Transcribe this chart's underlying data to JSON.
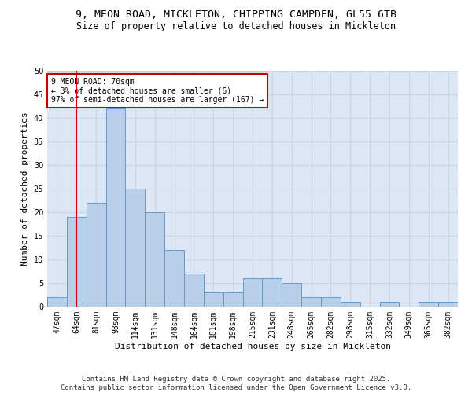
{
  "title_line1": "9, MEON ROAD, MICKLETON, CHIPPING CAMPDEN, GL55 6TB",
  "title_line2": "Size of property relative to detached houses in Mickleton",
  "xlabel": "Distribution of detached houses by size in Mickleton",
  "ylabel": "Number of detached properties",
  "categories": [
    "47sqm",
    "64sqm",
    "81sqm",
    "98sqm",
    "114sqm",
    "131sqm",
    "148sqm",
    "164sqm",
    "181sqm",
    "198sqm",
    "215sqm",
    "231sqm",
    "248sqm",
    "265sqm",
    "282sqm",
    "298sqm",
    "315sqm",
    "332sqm",
    "349sqm",
    "365sqm",
    "382sqm"
  ],
  "values": [
    2,
    19,
    22,
    42,
    25,
    20,
    12,
    7,
    3,
    3,
    6,
    6,
    5,
    2,
    2,
    1,
    0,
    1,
    0,
    1,
    1
  ],
  "bar_color": "#b8cfe8",
  "bar_edge_color": "#6699cc",
  "bar_width": 1.0,
  "red_line_x": 1,
  "annotation_title": "9 MEON ROAD: 70sqm",
  "annotation_line1": "← 3% of detached houses are smaller (6)",
  "annotation_line2": "97% of semi-detached houses are larger (167) →",
  "annotation_box_color": "#ffffff",
  "annotation_box_edge": "#cc0000",
  "red_line_color": "#cc0000",
  "ylim": [
    0,
    50
  ],
  "yticks": [
    0,
    5,
    10,
    15,
    20,
    25,
    30,
    35,
    40,
    45,
    50
  ],
  "grid_color": "#c8d4e8",
  "background_color": "#dce6f5",
  "footer_line1": "Contains HM Land Registry data © Crown copyright and database right 2025.",
  "footer_line2": "Contains public sector information licensed under the Open Government Licence v3.0.",
  "title_fontsize": 9.5,
  "subtitle_fontsize": 8.5,
  "axis_label_fontsize": 8,
  "tick_fontsize": 7,
  "annot_fontsize": 7,
  "footer_fontsize": 6.5
}
